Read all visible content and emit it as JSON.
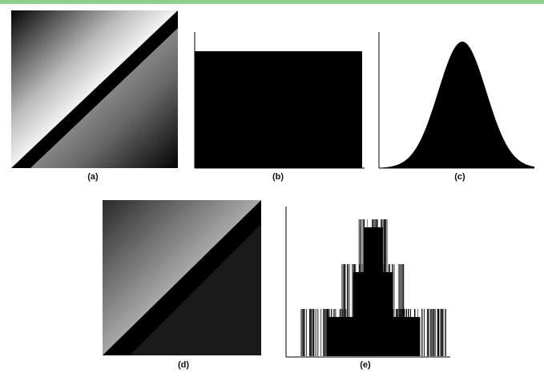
{
  "header": {
    "accent_color": "#8fcf8f"
  },
  "panels": {
    "a": {
      "caption": "(a)",
      "content": "image: diagonal-split square, upper-left gradient, lower-right black"
    },
    "b": {
      "caption": "(b)",
      "content": "histogram: flat / uniform distribution"
    },
    "c": {
      "caption": "(c)",
      "content": "histogram: bell-shaped gaussian distribution"
    },
    "d": {
      "caption": "(d)",
      "content": "image: diagonal-split square, gray gradient, lower-right black"
    },
    "e": {
      "caption": "(e)",
      "content": "histogram: three stepped tiers of vertical lines"
    }
  },
  "colors": {
    "fill": "#000000",
    "background": "#ffffff"
  }
}
